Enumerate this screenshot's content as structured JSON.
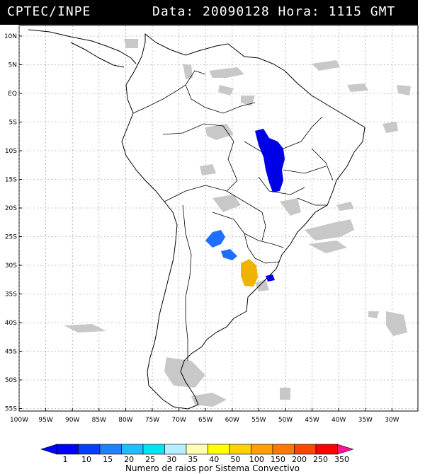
{
  "header": {
    "source": "CPTEC/INPE",
    "datetime": "Data: 20090128 Hora: 1115 GMT"
  },
  "lat_labels": [
    "10N",
    "5N",
    "EQ",
    "5S",
    "10S",
    "15S",
    "20S",
    "25S",
    "30S",
    "35S",
    "40S",
    "45S",
    "50S",
    "55S"
  ],
  "lon_labels": [
    "100W",
    "95W",
    "90W",
    "85W",
    "80W",
    "75W",
    "70W",
    "65W",
    "60W",
    "55W",
    "50W",
    "45W",
    "40W",
    "35W",
    "30W"
  ],
  "colorbar": {
    "title": "Numero de raios por Sistema Convectivo",
    "ticks": [
      "1",
      "10",
      "15",
      "20",
      "25",
      "30",
      "35",
      "40",
      "50",
      "100",
      "150",
      "200",
      "250",
      "350"
    ],
    "colors": [
      "#0000ff",
      "#0a3cff",
      "#1e82ff",
      "#1ebeff",
      "#00e6f0",
      "#b4f0ff",
      "#ffffb4",
      "#ffff00",
      "#ffd200",
      "#ffa000",
      "#ff7800",
      "#ff4600",
      "#ff0000",
      "#ff1493"
    ]
  },
  "legend_colors": {
    "cloud_gray": "#c8c8c8",
    "cell_dark_blue": "#0000e6",
    "cell_blue": "#1e6eff",
    "cell_orange": "#f0b400"
  }
}
